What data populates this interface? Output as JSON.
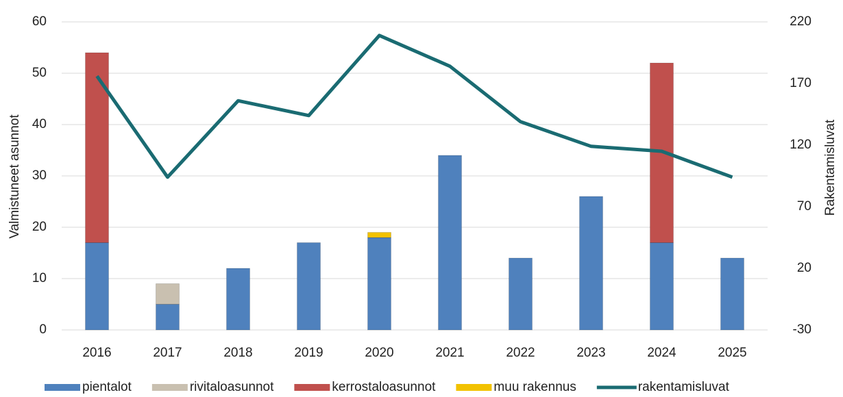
{
  "chart_data": {
    "type": "bar",
    "categories": [
      "2016",
      "2017",
      "2018",
      "2019",
      "2020",
      "2021",
      "2022",
      "2023",
      "2024",
      "2025"
    ],
    "series": [
      {
        "name": "pientalot",
        "color": "#4f81bd",
        "values": [
          17,
          5,
          12,
          17,
          18,
          34,
          14,
          26,
          17,
          14
        ]
      },
      {
        "name": "rivitaloasunnot",
        "color": "#c9c0b0",
        "values": [
          0,
          4,
          0,
          0,
          0,
          0,
          0,
          0,
          0,
          0
        ]
      },
      {
        "name": "kerrostaloasunnot",
        "color": "#c0504d",
        "values": [
          37,
          0,
          0,
          0,
          0,
          0,
          0,
          0,
          35,
          0
        ]
      },
      {
        "name": "muu rakennus",
        "color": "#f2c200",
        "values": [
          0,
          0,
          0,
          0,
          1,
          0,
          0,
          0,
          0,
          0
        ]
      },
      {
        "name": "rakentamisluvat",
        "color": "#1a6b72",
        "axis": "y2",
        "values": [
          176,
          94,
          156,
          144,
          209,
          184,
          139,
          119,
          115,
          94
        ]
      }
    ],
    "y_label": "Valmistuneet asunnot",
    "y2_label": "Rakentamisluvat",
    "ylim": [
      0,
      60
    ],
    "yticks": [
      0,
      10,
      20,
      30,
      40,
      50,
      60
    ],
    "y2lim": [
      -30,
      220
    ],
    "y2ticks": [
      -30,
      20,
      70,
      120,
      170,
      220
    ],
    "grid": true,
    "legend": "bottom"
  }
}
